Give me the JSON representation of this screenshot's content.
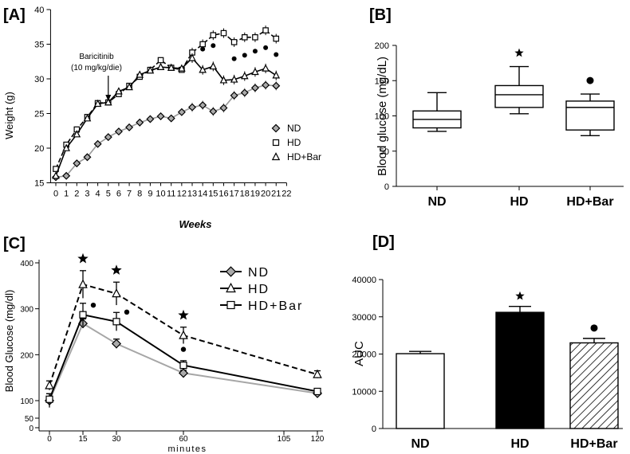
{
  "chart_data": [
    {
      "panel": "[A]",
      "type": "line",
      "xlabel": "Weeks",
      "ylabel": "Weight (g)",
      "xlim": [
        -0.5,
        22
      ],
      "ylim": [
        15,
        40
      ],
      "x_ticks": [
        0,
        1,
        2,
        3,
        4,
        5,
        6,
        7,
        8,
        9,
        10,
        11,
        12,
        13,
        14,
        15,
        16,
        17,
        18,
        19,
        20,
        21,
        22
      ],
      "y_ticks": [
        15,
        20,
        25,
        30,
        35,
        40
      ],
      "annotation": [
        "Baricitinib",
        "(10 mg/kg/die)"
      ],
      "annotation_week": 5,
      "legend": [
        "ND",
        "HD",
        "HD+Bar"
      ],
      "legend_position": "bottom-right",
      "series": [
        {
          "name": "ND",
          "marker": "diamond",
          "color": "#999999",
          "x": [
            0,
            1,
            2,
            3,
            4,
            5,
            6,
            7,
            8,
            9,
            10,
            11,
            12,
            13,
            14,
            15,
            16,
            17,
            18,
            19,
            20,
            21
          ],
          "y": [
            15.8,
            16.0,
            17.8,
            18.7,
            20.6,
            21.6,
            22.4,
            23.0,
            23.7,
            24.2,
            24.6,
            24.3,
            25.2,
            25.9,
            26.2,
            25.3,
            25.8,
            27.6,
            28.0,
            28.7,
            29.1,
            29.0
          ]
        },
        {
          "name": "HD",
          "marker": "square",
          "color": "#000000",
          "x": [
            0,
            1,
            2,
            3,
            4,
            5,
            6,
            7,
            8,
            9,
            10,
            11,
            12,
            13,
            14,
            15,
            16,
            17,
            18,
            19,
            20,
            21
          ],
          "y": [
            17.0,
            20.5,
            22.7,
            24.5,
            26.5,
            26.6,
            27.8,
            29.0,
            30.3,
            31.3,
            32.7,
            31.6,
            31.3,
            33.8,
            35.0,
            36.3,
            36.6,
            35.3,
            36.0,
            36.0,
            37.0,
            35.8
          ]
        },
        {
          "name": "HD+Bar",
          "marker": "triangle",
          "color": "#000000",
          "x": [
            0,
            1,
            2,
            3,
            4,
            5,
            6,
            7,
            8,
            9,
            10,
            11,
            12,
            13,
            14,
            15,
            16,
            17,
            18,
            19,
            20,
            21
          ],
          "y": [
            16.0,
            20.0,
            22.0,
            24.3,
            26.4,
            26.6,
            28.2,
            28.8,
            30.6,
            31.2,
            31.7,
            31.6,
            31.5,
            33.0,
            31.3,
            31.8,
            29.8,
            29.9,
            30.4,
            31.0,
            31.5,
            30.5
          ]
        }
      ],
      "dot_markers_weeks": [
        14,
        15,
        17,
        18,
        19,
        20,
        21
      ]
    },
    {
      "panel": "[B]",
      "type": "boxplot",
      "ylabel": "Blood glucose (mg/dL)",
      "ylim": [
        0,
        200
      ],
      "y_ticks": [
        0,
        50,
        100,
        150,
        200
      ],
      "categories": [
        "ND",
        "HD",
        "HD+Bar"
      ],
      "boxes": [
        {
          "min": 78,
          "q1": 83,
          "median": 95,
          "q3": 107,
          "max": 133,
          "mark": ""
        },
        {
          "min": 103,
          "q1": 112,
          "median": 130,
          "q3": 143,
          "max": 170,
          "mark": "★"
        },
        {
          "min": 72,
          "q1": 80,
          "median": 112,
          "q3": 121,
          "max": 131,
          "mark": "●"
        }
      ]
    },
    {
      "panel": "[C]",
      "type": "line",
      "xlabel": "minutes",
      "ylabel": "Blood Glucose (mg/dl)",
      "x_ticks": [
        0,
        15,
        30,
        60,
        105,
        120
      ],
      "y_ticks": [
        0,
        50,
        100,
        200,
        300,
        400
      ],
      "y_break": [
        50,
        100
      ],
      "legend": [
        "ND",
        "HD",
        "HD+Bar"
      ],
      "legend_position": "top-right",
      "series": [
        {
          "name": "ND",
          "marker": "diamond",
          "line": "gray",
          "x": [
            0,
            15,
            30,
            60,
            120
          ],
          "y": [
            100,
            268,
            224,
            160,
            116
          ],
          "err": [
            15,
            10,
            10,
            6,
            5
          ]
        },
        {
          "name": "HD",
          "marker": "triangle",
          "line": "dashed",
          "x": [
            0,
            15,
            30,
            60,
            120
          ],
          "y": [
            133,
            353,
            333,
            242,
            157
          ],
          "err": [
            10,
            30,
            25,
            18,
            8
          ]
        },
        {
          "name": "HD+Bar",
          "marker": "square",
          "line": "solid",
          "x": [
            0,
            15,
            30,
            60,
            120
          ],
          "y": [
            103,
            287,
            272,
            177,
            120
          ],
          "err": [
            12,
            25,
            20,
            10,
            6
          ]
        }
      ],
      "star_times": [
        15,
        30,
        60
      ],
      "dot_times": [
        15,
        30,
        60
      ]
    },
    {
      "panel": "[D]",
      "type": "bar",
      "ylabel": "AUC",
      "ylim": [
        0,
        40000
      ],
      "y_ticks": [
        0,
        10000,
        20000,
        30000,
        40000
      ],
      "categories": [
        "ND",
        "HD",
        "HD+Bar"
      ],
      "values": [
        20100,
        31200,
        23000
      ],
      "errors": [
        600,
        1600,
        1200
      ],
      "fills": [
        "white",
        "black",
        "hatched"
      ],
      "marks": [
        "",
        "★",
        "●"
      ]
    }
  ]
}
